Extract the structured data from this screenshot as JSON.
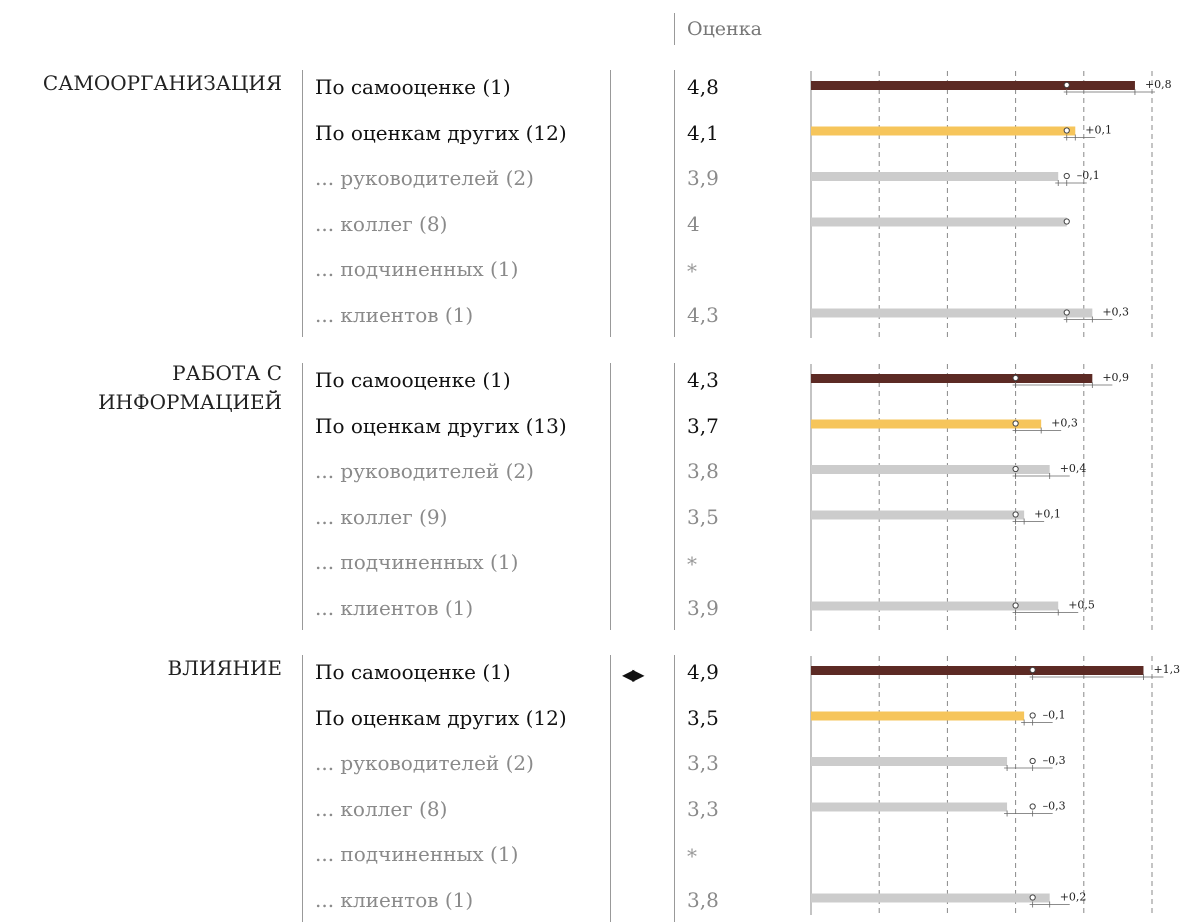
{
  "header": {
    "column_title": "Оценка"
  },
  "groups": [
    {
      "title": "САМООРГАНИЗАЦИЯ",
      "rows": [
        {
          "label": "По самооценке (1)",
          "value_text": "4,8",
          "kind": "self"
        },
        {
          "label": "По оценкам других (12)",
          "value_text": "4,1",
          "kind": "others"
        },
        {
          "label": "... руководителей (2)",
          "value_text": "3,9",
          "kind": "sub"
        },
        {
          "label": "... коллег (8)",
          "value_text": "4",
          "kind": "sub"
        },
        {
          "label": "... подчиненных (1)",
          "value_text": "*",
          "kind": "sub"
        },
        {
          "label": "... клиентов (1)",
          "value_text": "4,3",
          "kind": "sub"
        }
      ]
    },
    {
      "title": "РАБОТА С ИНФОРМАЦИЕЙ",
      "rows": [
        {
          "label": "По самооценке (1)",
          "value_text": "4,3",
          "kind": "self"
        },
        {
          "label": "По оценкам других (13)",
          "value_text": "3,7",
          "kind": "others"
        },
        {
          "label": "... руководителей (2)",
          "value_text": "3,8",
          "kind": "sub"
        },
        {
          "label": "... коллег (9)",
          "value_text": "3,5",
          "kind": "sub"
        },
        {
          "label": "... подчиненных (1)",
          "value_text": "*",
          "kind": "sub"
        },
        {
          "label": "... клиентов (1)",
          "value_text": "3,9",
          "kind": "sub"
        }
      ]
    },
    {
      "title": "ВЛИЯНИЕ",
      "marker": "◀▶",
      "rows": [
        {
          "label": "По самооценке (1)",
          "value_text": "4,9",
          "kind": "self"
        },
        {
          "label": "По оценкам других (12)",
          "value_text": "3,5",
          "kind": "others"
        },
        {
          "label": "... руководителей (2)",
          "value_text": "3,3",
          "kind": "sub"
        },
        {
          "label": "... коллег (8)",
          "value_text": "3,3",
          "kind": "sub"
        },
        {
          "label": "... подчиненных (1)",
          "value_text": "*",
          "kind": "sub"
        },
        {
          "label": "... клиентов (1)",
          "value_text": "3,8",
          "kind": "sub"
        }
      ]
    }
  ],
  "colors": {
    "self": "#5c2a24",
    "others": "#f6c55b",
    "sub": "#cccccc",
    "grid": "#888888"
  },
  "chart_data": {
    "type": "bar",
    "xlim": [
      1,
      5
    ],
    "grid": true,
    "series": [
      {
        "name": "САМООРГАНИЗАЦИЯ",
        "values": [
          4.8,
          4.1,
          3.9,
          4.0,
          null,
          4.3
        ],
        "benchmarks": [
          4.0,
          4.0,
          4.0,
          4.0,
          null,
          4.0
        ],
        "differences": [
          "+0,8",
          "+0,1",
          "–0,1",
          "",
          "",
          "+0,3"
        ]
      },
      {
        "name": "РАБОТА С ИНФОРМАЦИЕЙ",
        "values": [
          4.3,
          3.7,
          3.8,
          3.5,
          null,
          3.9
        ],
        "benchmarks": [
          3.4,
          3.4,
          3.4,
          3.4,
          null,
          3.4
        ],
        "differences": [
          "+0,9",
          "+0,3",
          "+0,4",
          "+0,1",
          "",
          "+0,5"
        ]
      },
      {
        "name": "ВЛИЯНИЕ",
        "values": [
          4.9,
          3.5,
          3.3,
          3.3,
          null,
          3.8
        ],
        "benchmarks": [
          3.6,
          3.6,
          3.6,
          3.6,
          null,
          3.6
        ],
        "differences": [
          "+1,3",
          "–0,1",
          "–0,3",
          "–0,3",
          "",
          "+0,2"
        ]
      }
    ]
  }
}
